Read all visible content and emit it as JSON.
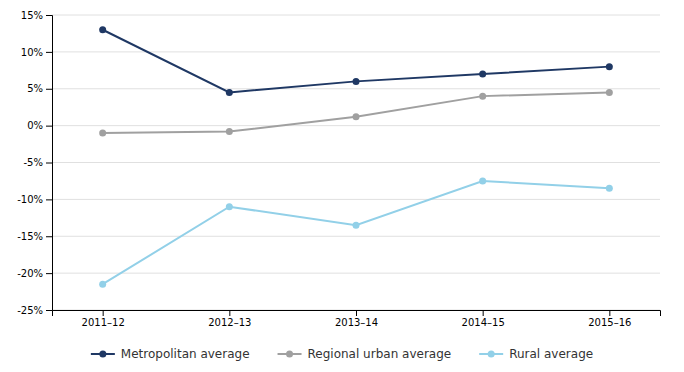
{
  "chart_data": {
    "type": "line",
    "categories": [
      "2011–12",
      "2012–13",
      "2013–14",
      "2014–15",
      "2015–16"
    ],
    "series": [
      {
        "name": "Metropolitan average",
        "color": "#1f3864",
        "marker": "circle",
        "values": [
          13.0,
          4.5,
          6.0,
          7.0,
          8.0
        ]
      },
      {
        "name": "Regional urban average",
        "color": "#a0a0a0",
        "marker": "circle",
        "values": [
          -1.0,
          -0.8,
          1.2,
          4.0,
          4.5
        ]
      },
      {
        "name": "Rural average",
        "color": "#92d0e8",
        "marker": "circle",
        "values": [
          -21.5,
          -11.0,
          -13.5,
          -7.5,
          -8.5
        ]
      }
    ],
    "ylim": [
      -25,
      15
    ],
    "yticks": [
      {
        "value": -25,
        "label": "-25%"
      },
      {
        "value": -20,
        "label": "-20%"
      },
      {
        "value": -15,
        "label": "-15%"
      },
      {
        "value": -10,
        "label": "-10%"
      },
      {
        "value": -5,
        "label": "-5%"
      },
      {
        "value": 0,
        "label": "0%"
      },
      {
        "value": 5,
        "label": "5%"
      },
      {
        "value": 10,
        "label": "10%"
      },
      {
        "value": 15,
        "label": "15%"
      }
    ],
    "grid": true,
    "legend": "bottom"
  }
}
